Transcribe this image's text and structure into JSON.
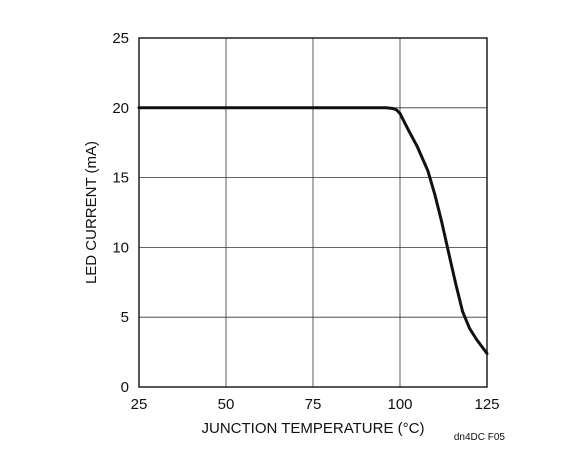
{
  "chart_data": {
    "type": "line",
    "xlabel": "JUNCTION TEMPERATURE (°C)",
    "ylabel": "LED CURRENT (mA)",
    "xlim": [
      25,
      125
    ],
    "ylim": [
      0,
      25
    ],
    "x_ticks": [
      "25",
      "50",
      "75",
      "100",
      "125"
    ],
    "y_ticks": [
      "0",
      "5",
      "10",
      "15",
      "20",
      "25"
    ],
    "grid": true,
    "series": [
      {
        "x": [
          25,
          50,
          75,
          96,
          98,
          99,
          100,
          102,
          105,
          108,
          110,
          112,
          114,
          116,
          118,
          120,
          122,
          125
        ],
        "y": [
          20,
          20,
          20,
          20,
          19.95,
          19.85,
          19.6,
          18.6,
          17.2,
          15.5,
          13.8,
          11.8,
          9.6,
          7.4,
          5.4,
          4.2,
          3.4,
          2.4
        ]
      }
    ],
    "figure_code": "dn4DC F05"
  }
}
